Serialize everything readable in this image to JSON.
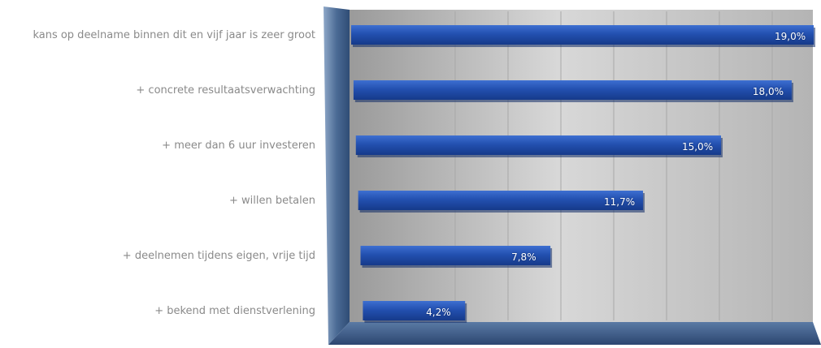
{
  "chart_data": {
    "type": "bar",
    "orientation": "horizontal",
    "categories": [
      "kans op deelname binnen dit en vijf jaar is zeer groot",
      "+ concrete  resultaatsverwachting",
      "+ meer dan 6 uur investeren",
      "+ willen betalen",
      "+ deelnemen tijdens eigen, vrije tijd",
      "+ bekend met dienstverlening"
    ],
    "values": [
      19.0,
      18.0,
      15.0,
      11.7,
      7.8,
      4.2
    ],
    "value_labels": [
      "19,0%",
      "18,0%",
      "15,0%",
      "11,7%",
      "7,8%",
      "4,2%"
    ],
    "xlim": [
      0,
      19.0
    ],
    "grid": true,
    "legend": "none",
    "title": "",
    "xlabel": "",
    "ylabel": "",
    "colors": {
      "bar": "#1f4aa8",
      "bar_light": "#3a6fd0",
      "frame": "#3e5f8a",
      "frame_light": "#7d9bc0",
      "plot_bg": "#b9b9b9",
      "category_text": "#8a8a8a",
      "value_text": "#ffffff"
    }
  }
}
